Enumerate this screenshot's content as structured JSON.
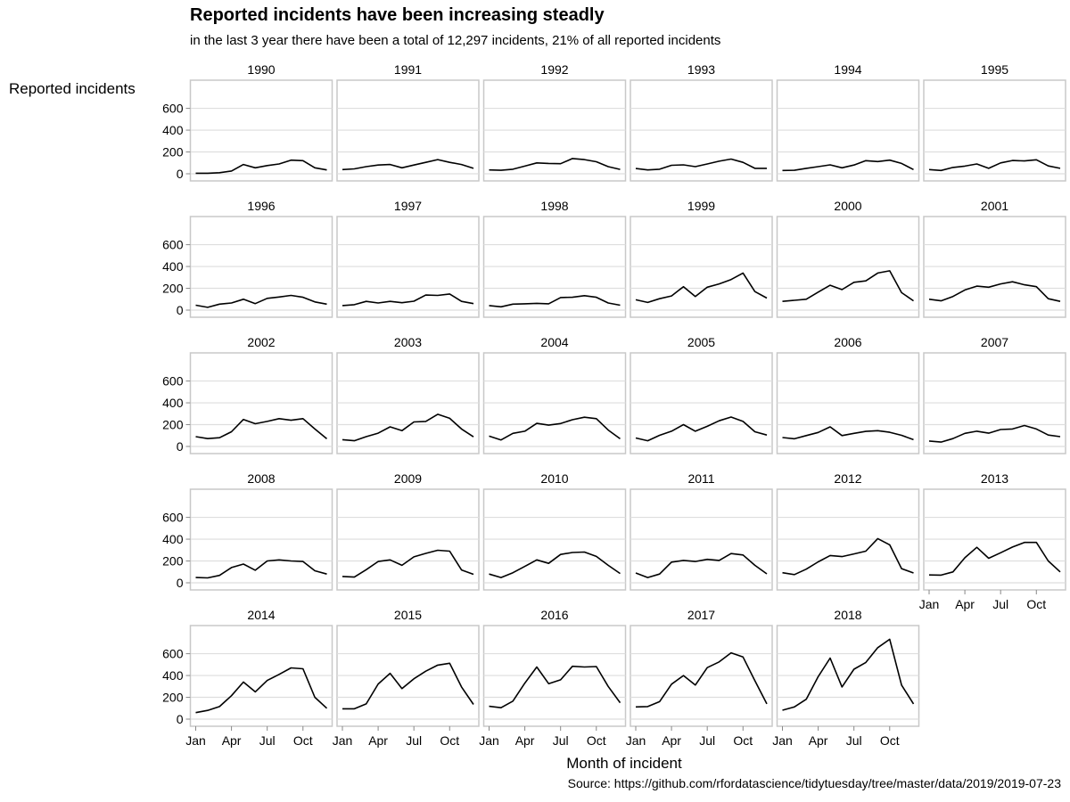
{
  "title": "Reported incidents have been increasing steadly",
  "subtitle": "in the last 3 year there have been a total of 12,297 incidents, 21% of all reported incidents",
  "caption": "Source: https://github.com/rfordatascience/tidytuesday/tree/master/data/2019/2019-07-23",
  "colors": {
    "line": "#000000",
    "panel_border": "#c8c8c8",
    "grid": "#dedede",
    "background": "#ffffff"
  },
  "chart_data": {
    "type": "line",
    "facet_by": "year",
    "xlabel": "Month of incident",
    "ylabel": "Reported incidents",
    "x_ticks": [
      "Jan",
      "Apr",
      "Jul",
      "Oct"
    ],
    "x_tick_months": [
      1,
      4,
      7,
      10
    ],
    "y_ticks": [
      0,
      200,
      400,
      600
    ],
    "ylim": [
      0,
      760
    ],
    "xlim": [
      1,
      12
    ],
    "grid": true,
    "series": [
      {
        "name": "1990",
        "values": [
          5,
          5,
          10,
          25,
          85,
          55,
          75,
          90,
          125,
          120,
          55,
          35
        ]
      },
      {
        "name": "1991",
        "values": [
          38,
          45,
          65,
          80,
          85,
          55,
          80,
          105,
          130,
          105,
          85,
          50
        ]
      },
      {
        "name": "1992",
        "values": [
          35,
          32,
          42,
          70,
          100,
          95,
          92,
          140,
          130,
          110,
          65,
          40
        ]
      },
      {
        "name": "1993",
        "values": [
          48,
          35,
          42,
          78,
          82,
          65,
          90,
          115,
          135,
          105,
          50,
          50
        ]
      },
      {
        "name": "1994",
        "values": [
          30,
          32,
          50,
          65,
          82,
          55,
          80,
          120,
          112,
          125,
          95,
          38
        ]
      },
      {
        "name": "1995",
        "values": [
          38,
          30,
          58,
          70,
          90,
          50,
          100,
          122,
          118,
          128,
          72,
          50
        ]
      },
      {
        "name": "1996",
        "values": [
          45,
          25,
          55,
          65,
          100,
          60,
          108,
          120,
          135,
          118,
          75,
          55
        ]
      },
      {
        "name": "1997",
        "values": [
          42,
          50,
          80,
          65,
          80,
          68,
          82,
          138,
          135,
          148,
          80,
          60
        ]
      },
      {
        "name": "1998",
        "values": [
          42,
          30,
          55,
          58,
          62,
          58,
          115,
          118,
          132,
          118,
          65,
          45
        ]
      },
      {
        "name": "1999",
        "values": [
          95,
          70,
          105,
          130,
          215,
          125,
          210,
          240,
          280,
          340,
          170,
          110
        ]
      },
      {
        "name": "2000",
        "values": [
          80,
          90,
          100,
          165,
          228,
          188,
          255,
          268,
          340,
          360,
          160,
          85
        ]
      },
      {
        "name": "2001",
        "values": [
          100,
          85,
          125,
          185,
          220,
          210,
          240,
          260,
          232,
          215,
          105,
          80
        ]
      },
      {
        "name": "2002",
        "values": [
          90,
          72,
          80,
          135,
          248,
          208,
          230,
          255,
          240,
          255,
          160,
          70
        ]
      },
      {
        "name": "2003",
        "values": [
          62,
          52,
          90,
          122,
          180,
          145,
          225,
          230,
          295,
          258,
          160,
          88
        ]
      },
      {
        "name": "2004",
        "values": [
          95,
          60,
          120,
          140,
          212,
          195,
          210,
          245,
          268,
          255,
          150,
          70
        ]
      },
      {
        "name": "2005",
        "values": [
          78,
          52,
          102,
          140,
          200,
          140,
          185,
          235,
          270,
          230,
          135,
          105
        ]
      },
      {
        "name": "2006",
        "values": [
          82,
          70,
          100,
          128,
          180,
          100,
          120,
          138,
          145,
          130,
          102,
          62
        ]
      },
      {
        "name": "2007",
        "values": [
          50,
          40,
          72,
          120,
          140,
          122,
          155,
          160,
          192,
          160,
          105,
          90
        ]
      },
      {
        "name": "2008",
        "values": [
          48,
          45,
          68,
          140,
          172,
          115,
          200,
          210,
          200,
          195,
          110,
          80
        ]
      },
      {
        "name": "2009",
        "values": [
          58,
          52,
          120,
          195,
          210,
          160,
          238,
          270,
          298,
          290,
          118,
          78
        ]
      },
      {
        "name": "2010",
        "values": [
          80,
          48,
          92,
          150,
          210,
          178,
          260,
          278,
          282,
          242,
          160,
          85
        ]
      },
      {
        "name": "2011",
        "values": [
          90,
          48,
          80,
          190,
          205,
          195,
          215,
          205,
          268,
          255,
          160,
          82
        ]
      },
      {
        "name": "2012",
        "values": [
          92,
          75,
          125,
          192,
          250,
          240,
          265,
          290,
          405,
          348,
          130,
          90
        ]
      },
      {
        "name": "2013",
        "values": [
          72,
          70,
          100,
          230,
          325,
          225,
          275,
          328,
          370,
          370,
          200,
          100
        ]
      },
      {
        "name": "2014",
        "values": [
          60,
          80,
          115,
          215,
          340,
          250,
          355,
          410,
          470,
          462,
          200,
          100
        ]
      },
      {
        "name": "2015",
        "values": [
          95,
          95,
          140,
          322,
          420,
          280,
          370,
          440,
          495,
          512,
          295,
          135
        ]
      },
      {
        "name": "2016",
        "values": [
          118,
          105,
          165,
          330,
          478,
          325,
          360,
          485,
          478,
          482,
          300,
          150
        ]
      },
      {
        "name": "2017",
        "values": [
          112,
          115,
          160,
          320,
          400,
          312,
          472,
          525,
          608,
          570,
          352,
          140
        ]
      },
      {
        "name": "2018",
        "values": [
          82,
          112,
          182,
          390,
          560,
          295,
          458,
          520,
          655,
          732,
          312,
          140
        ]
      }
    ]
  }
}
